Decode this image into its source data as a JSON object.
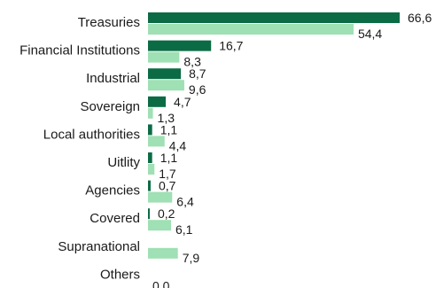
{
  "chart_data": {
    "type": "bar",
    "orientation": "horizontal",
    "categories": [
      "Treasuries",
      "Financial Institutions",
      "Industrial",
      "Sovereign",
      "Local authorities",
      "Uitlity",
      "Agencies",
      "Covered",
      "Supranational",
      "Others"
    ],
    "series": [
      {
        "values": [
          66.6,
          16.7,
          8.7,
          4.7,
          1.1,
          1.1,
          0.7,
          0.2,
          null,
          null
        ],
        "labels": [
          "66,6",
          "16,7",
          "8,7",
          "4,7",
          "1,1",
          "1,1",
          "0,7",
          "0,2",
          "",
          ""
        ],
        "color": "#0b6b45"
      },
      {
        "values": [
          54.4,
          8.3,
          9.6,
          1.3,
          4.4,
          1.7,
          6.4,
          6.1,
          7.9,
          0.0
        ],
        "labels": [
          "54,4",
          "8,3",
          "9,6",
          "1,3",
          "4,4",
          "1,7",
          "6,4",
          "6,1",
          "7,9",
          "0,0"
        ],
        "color": "#9fe0b4"
      }
    ],
    "xlim": [
      0,
      66.6
    ],
    "grid": false,
    "legend": "none"
  }
}
